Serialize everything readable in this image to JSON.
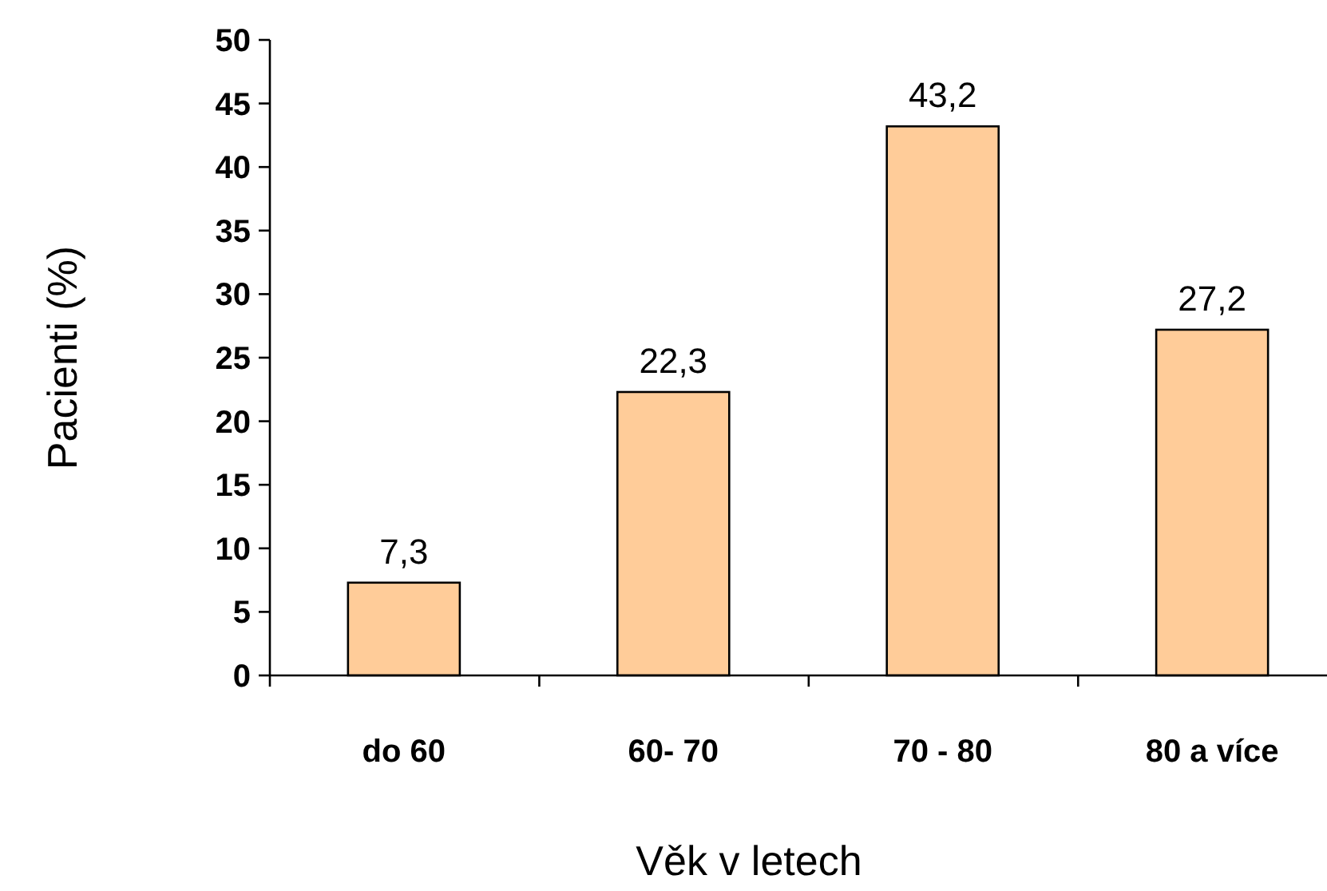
{
  "chart_data": {
    "type": "bar",
    "xlabel": "Věk v letech",
    "ylabel": "Pacienti (%)",
    "categories": [
      "do 60",
      "60- 70",
      "70 - 80",
      "80 a více"
    ],
    "values": [
      7.3,
      22.3,
      43.2,
      27.2
    ],
    "value_labels": [
      "7,3",
      "22,3",
      "43,2",
      "27,2"
    ],
    "color": "#ffcc99",
    "ylim": [
      0,
      50
    ],
    "yticks": [
      0,
      5,
      10,
      15,
      20,
      25,
      30,
      35,
      40,
      45,
      50
    ]
  }
}
